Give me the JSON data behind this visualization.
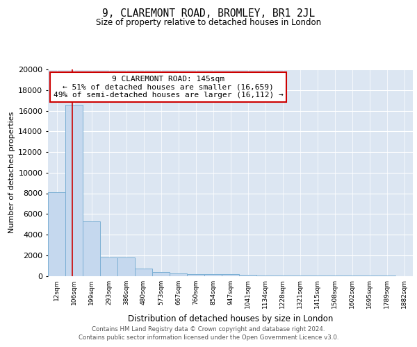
{
  "title1": "9, CLAREMONT ROAD, BROMLEY, BR1 2JL",
  "title2": "Size of property relative to detached houses in London",
  "xlabel": "Distribution of detached houses by size in London",
  "ylabel": "Number of detached properties",
  "bin_labels": [
    "12sqm",
    "106sqm",
    "199sqm",
    "293sqm",
    "386sqm",
    "480sqm",
    "573sqm",
    "667sqm",
    "760sqm",
    "854sqm",
    "947sqm",
    "1041sqm",
    "1134sqm",
    "1228sqm",
    "1321sqm",
    "1415sqm",
    "1508sqm",
    "1602sqm",
    "1695sqm",
    "1789sqm",
    "1882sqm"
  ],
  "bar_heights": [
    8100,
    16600,
    5300,
    1750,
    1750,
    700,
    350,
    250,
    200,
    200,
    150,
    100,
    60,
    50,
    30,
    20,
    10,
    10,
    5,
    5,
    0
  ],
  "bar_color": "#c5d8ee",
  "bar_edge_color": "#7bafd4",
  "bg_color": "#dce6f2",
  "red_line_color": "#cc0000",
  "annotation_text": "9 CLAREMONT ROAD: 145sqm\n← 51% of detached houses are smaller (16,659)\n49% of semi-detached houses are larger (16,112) →",
  "annotation_box_color": "#ffffff",
  "annotation_border_color": "#cc0000",
  "ylim": [
    0,
    20000
  ],
  "yticks": [
    0,
    2000,
    4000,
    6000,
    8000,
    10000,
    12000,
    14000,
    16000,
    18000,
    20000
  ],
  "footer1": "Contains HM Land Registry data © Crown copyright and database right 2024.",
  "footer2": "Contains public sector information licensed under the Open Government Licence v3.0."
}
